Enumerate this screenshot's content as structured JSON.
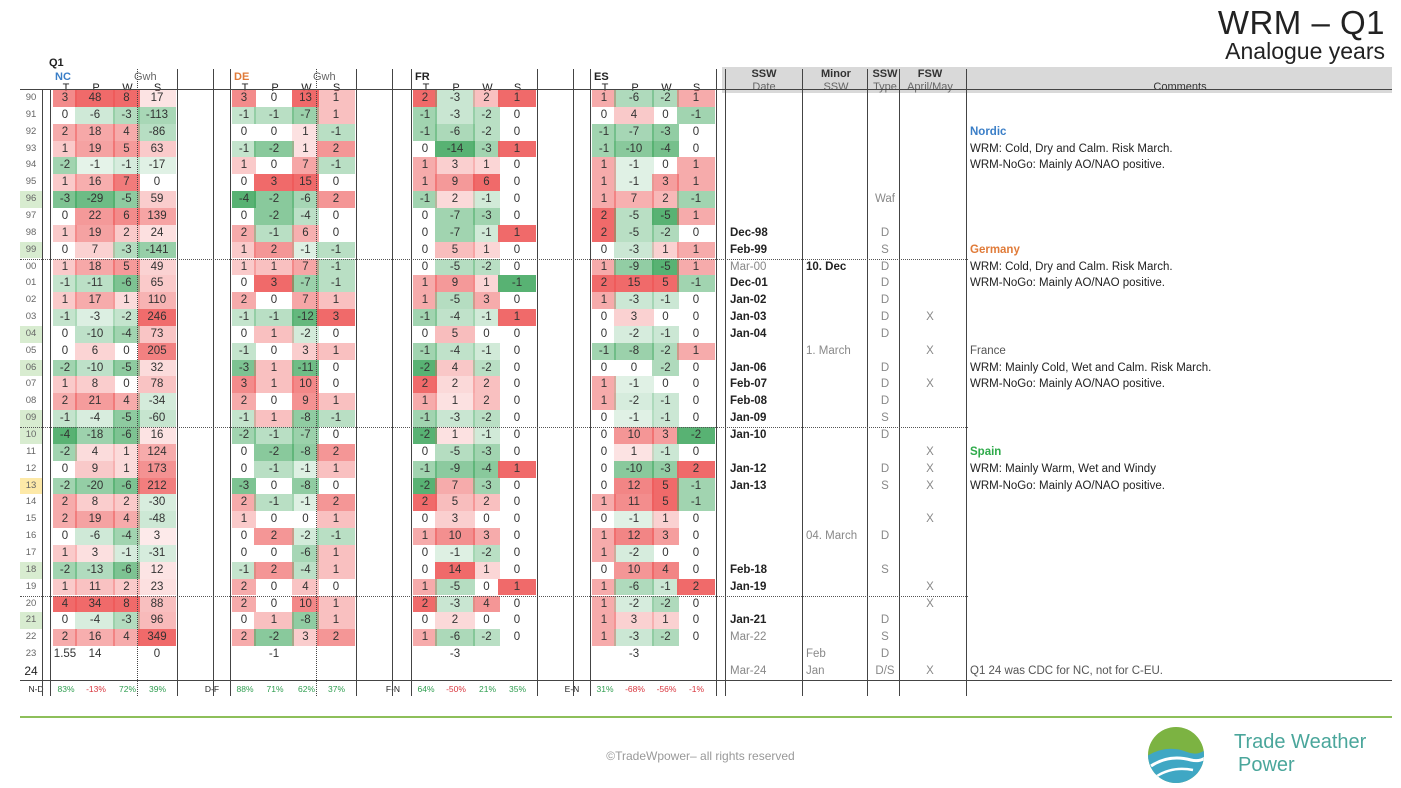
{
  "title": "WRM – Q1",
  "subtitle": "Analogue years",
  "table": {
    "q1_label": "Q1",
    "countries": [
      {
        "name": "NC",
        "color": "#3a7ec7",
        "unit": "Gwh"
      },
      {
        "name": "DE",
        "color": "#e07b39",
        "unit": "Gwh"
      },
      {
        "name": "FR",
        "color": "#222222",
        "unit": ""
      },
      {
        "name": "ES",
        "color": "#222222",
        "unit": ""
      }
    ],
    "sub_headers": [
      "T",
      "P",
      "W",
      "S"
    ],
    "ssw_headers": {
      "h1": [
        "SSW",
        "Minor",
        "SSW",
        "FSW"
      ],
      "h2": [
        "Date",
        "SSW",
        "Type",
        "April/May"
      ],
      "comments": "Comments"
    },
    "years": [
      "90",
      "91",
      "92",
      "93",
      "94",
      "95",
      "96",
      "97",
      "98",
      "99",
      "00",
      "01",
      "02",
      "03",
      "04",
      "05",
      "06",
      "07",
      "08",
      "09",
      "10",
      "11",
      "12",
      "13",
      "14",
      "15",
      "16",
      "17",
      "18",
      "19",
      "20",
      "21",
      "22",
      "23",
      "24"
    ],
    "rows": [
      [
        "3",
        "48",
        "8",
        "17",
        "3",
        "0",
        "13",
        "1",
        "2",
        "-3",
        "2",
        "1",
        "1",
        "-6",
        "-2",
        "1"
      ],
      [
        "0",
        "-6",
        "-3",
        "-113",
        "-1",
        "-1",
        "-7",
        "1",
        "-1",
        "-3",
        "-2",
        "0",
        "0",
        "4",
        "0",
        "-1"
      ],
      [
        "2",
        "18",
        "4",
        "-86",
        "0",
        "0",
        "1",
        "-1",
        "-1",
        "-6",
        "-2",
        "0",
        "-1",
        "-7",
        "-3",
        "0"
      ],
      [
        "1",
        "19",
        "5",
        "63",
        "-1",
        "-2",
        "1",
        "2",
        "0",
        "-14",
        "-3",
        "1",
        "-1",
        "-10",
        "-4",
        "0"
      ],
      [
        "-2",
        "-1",
        "-1",
        "-17",
        "1",
        "0",
        "7",
        "-1",
        "1",
        "3",
        "1",
        "0",
        "1",
        "-1",
        "0",
        "1"
      ],
      [
        "1",
        "16",
        "7",
        "0",
        "0",
        "3",
        "15",
        "0",
        "1",
        "9",
        "6",
        "0",
        "1",
        "-1",
        "3",
        "1"
      ],
      [
        "-3",
        "-29",
        "-5",
        "59",
        "-4",
        "-2",
        "-6",
        "2",
        "-1",
        "2",
        "-1",
        "0",
        "1",
        "7",
        "2",
        "-1"
      ],
      [
        "0",
        "22",
        "6",
        "139",
        "0",
        "-2",
        "-4",
        "0",
        "0",
        "-7",
        "-3",
        "0",
        "2",
        "-5",
        "-5",
        "1"
      ],
      [
        "1",
        "19",
        "2",
        "24",
        "2",
        "-1",
        "6",
        "0",
        "0",
        "-7",
        "-1",
        "1",
        "2",
        "-5",
        "-2",
        "0"
      ],
      [
        "0",
        "7",
        "-3",
        "-141",
        "1",
        "2",
        "-1",
        "-1",
        "0",
        "5",
        "1",
        "0",
        "0",
        "-3",
        "1",
        "1"
      ],
      [
        "1",
        "18",
        "5",
        "49",
        "1",
        "1",
        "7",
        "-1",
        "0",
        "-5",
        "-2",
        "0",
        "1",
        "-9",
        "-5",
        "1"
      ],
      [
        "-1",
        "-11",
        "-6",
        "65",
        "0",
        "3",
        "-7",
        "-1",
        "1",
        "9",
        "1",
        "-1",
        "2",
        "15",
        "5",
        "-1"
      ],
      [
        "1",
        "17",
        "1",
        "110",
        "2",
        "0",
        "7",
        "1",
        "1",
        "-5",
        "3",
        "0",
        "1",
        "-3",
        "-1",
        "0"
      ],
      [
        "-1",
        "-3",
        "-2",
        "246",
        "-1",
        "-1",
        "-12",
        "3",
        "-1",
        "-4",
        "-1",
        "1",
        "0",
        "3",
        "0",
        "0"
      ],
      [
        "0",
        "-10",
        "-4",
        "73",
        "0",
        "1",
        "-2",
        "0",
        "0",
        "5",
        "0",
        "0",
        "0",
        "-2",
        "-1",
        "0"
      ],
      [
        "0",
        "6",
        "0",
        "205",
        "-1",
        "0",
        "3",
        "1",
        "-1",
        "-4",
        "-1",
        "0",
        "-1",
        "-8",
        "-2",
        "1"
      ],
      [
        "-2",
        "-10",
        "-5",
        "32",
        "-3",
        "1",
        "-11",
        "0",
        "-2",
        "4",
        "-2",
        "0",
        "0",
        "0",
        "-2",
        "0"
      ],
      [
        "1",
        "8",
        "0",
        "78",
        "3",
        "1",
        "10",
        "0",
        "2",
        "2",
        "2",
        "0",
        "1",
        "-1",
        "0",
        "0"
      ],
      [
        "2",
        "21",
        "4",
        "-34",
        "2",
        "0",
        "9",
        "1",
        "1",
        "1",
        "2",
        "0",
        "1",
        "-2",
        "-1",
        "0"
      ],
      [
        "-1",
        "-4",
        "-5",
        "-60",
        "-1",
        "1",
        "-8",
        "-1",
        "-1",
        "-3",
        "-2",
        "0",
        "0",
        "-1",
        "-1",
        "0"
      ],
      [
        "-4",
        "-18",
        "-6",
        "16",
        "-2",
        "-1",
        "-7",
        "0",
        "-2",
        "1",
        "-1",
        "0",
        "0",
        "10",
        "3",
        "-2"
      ],
      [
        "-2",
        "4",
        "1",
        "124",
        "0",
        "-2",
        "-8",
        "2",
        "0",
        "-5",
        "-3",
        "0",
        "0",
        "1",
        "-1",
        "0"
      ],
      [
        "0",
        "9",
        "1",
        "173",
        "0",
        "-1",
        "-1",
        "1",
        "-1",
        "-9",
        "-4",
        "1",
        "0",
        "-10",
        "-3",
        "2"
      ],
      [
        "-2",
        "-20",
        "-6",
        "212",
        "-3",
        "0",
        "-8",
        "0",
        "-2",
        "7",
        "-3",
        "0",
        "0",
        "12",
        "5",
        "-1"
      ],
      [
        "2",
        "8",
        "2",
        "-30",
        "2",
        "-1",
        "-1",
        "2",
        "2",
        "5",
        "2",
        "0",
        "1",
        "11",
        "5",
        "-1"
      ],
      [
        "2",
        "19",
        "4",
        "-48",
        "1",
        "0",
        "0",
        "1",
        "0",
        "3",
        "0",
        "0",
        "0",
        "-1",
        "1",
        "0"
      ],
      [
        "0",
        "-6",
        "-4",
        "3",
        "0",
        "2",
        "-2",
        "-1",
        "1",
        "10",
        "3",
        "0",
        "1",
        "12",
        "3",
        "0"
      ],
      [
        "1",
        "3",
        "-1",
        "-31",
        "0",
        "0",
        "-6",
        "1",
        "0",
        "-1",
        "-2",
        "0",
        "1",
        "-2",
        "0",
        "0"
      ],
      [
        "-2",
        "-13",
        "-6",
        "12",
        "-1",
        "2",
        "-4",
        "1",
        "0",
        "14",
        "1",
        "0",
        "0",
        "10",
        "4",
        "0"
      ],
      [
        "1",
        "11",
        "2",
        "23",
        "2",
        "0",
        "4",
        "0",
        "1",
        "-5",
        "0",
        "1",
        "1",
        "-6",
        "-1",
        "2"
      ],
      [
        "4",
        "34",
        "8",
        "88",
        "2",
        "0",
        "10",
        "1",
        "2",
        "-3",
        "4",
        "0",
        "1",
        "-2",
        "-2",
        "0"
      ],
      [
        "0",
        "-4",
        "-3",
        "96",
        "0",
        "1",
        "-8",
        "1",
        "0",
        "2",
        "0",
        "0",
        "1",
        "3",
        "1",
        "0"
      ],
      [
        "2",
        "16",
        "4",
        "349",
        "2",
        "-2",
        "3",
        "2",
        "1",
        "-6",
        "-2",
        "0",
        "1",
        "-3",
        "-2",
        "0"
      ],
      [
        "1.55",
        "14",
        "",
        "0",
        "",
        "-1",
        "",
        "",
        "",
        "-3",
        "",
        "",
        "",
        "-3",
        "",
        ""
      ],
      [
        "",
        "",
        "",
        "",
        "",
        "",
        "",
        "",
        "",
        "",
        "",
        "",
        "",
        "",
        "",
        ""
      ]
    ],
    "ssw": [
      [
        "",
        "",
        "",
        ""
      ],
      [
        "",
        "",
        "",
        ""
      ],
      [
        "",
        "",
        "",
        ""
      ],
      [
        "",
        "",
        "",
        ""
      ],
      [
        "",
        "",
        "",
        ""
      ],
      [
        "",
        "",
        "",
        ""
      ],
      [
        "",
        "",
        "Waf",
        ""
      ],
      [
        "",
        "",
        "",
        ""
      ],
      [
        "Dec-98",
        "",
        "D",
        ""
      ],
      [
        "Feb-99",
        "",
        "S",
        ""
      ],
      [
        "Mar-00",
        "10. Dec",
        "D",
        ""
      ],
      [
        "Dec-01",
        "",
        "D",
        ""
      ],
      [
        "Jan-02",
        "",
        "D",
        ""
      ],
      [
        "Jan-03",
        "",
        "D",
        "X"
      ],
      [
        "Jan-04",
        "",
        "D",
        ""
      ],
      [
        "",
        "1. March",
        "",
        "X"
      ],
      [
        "Jan-06",
        "",
        "D",
        ""
      ],
      [
        "Feb-07",
        "",
        "D",
        "X"
      ],
      [
        "Feb-08",
        "",
        "D",
        ""
      ],
      [
        "Jan-09",
        "",
        "S",
        ""
      ],
      [
        "Jan-10",
        "",
        "D",
        ""
      ],
      [
        "",
        "",
        "",
        "X"
      ],
      [
        "Jan-12",
        "",
        "D",
        "X"
      ],
      [
        "Jan-13",
        "",
        "S",
        "X"
      ],
      [
        "",
        "",
        "",
        ""
      ],
      [
        "",
        "",
        "",
        "X"
      ],
      [
        "",
        "04. March",
        "D",
        ""
      ],
      [
        "",
        "",
        "",
        ""
      ],
      [
        "Feb-18",
        "",
        "S",
        ""
      ],
      [
        "Jan-19",
        "",
        "",
        "X"
      ],
      [
        "",
        "",
        "",
        "X"
      ],
      [
        "Jan-21",
        "",
        "D",
        ""
      ],
      [
        "Mar-22",
        "",
        "S",
        ""
      ],
      [
        "",
        "Feb",
        "D",
        ""
      ],
      [
        "Mar-24",
        "Jan",
        "D/S",
        "X"
      ]
    ],
    "comments": [
      {
        "row": 3,
        "text": "Nordic",
        "color": "#3a7ec7",
        "bold": true
      },
      {
        "row": 4,
        "text": "WRM: Cold, Dry and Calm. Risk March.",
        "color": "#222",
        "bold": false
      },
      {
        "row": 5,
        "text": "WRM-NoGo: Mainly AO/NAO positive.",
        "color": "#222",
        "bold": false
      },
      {
        "row": 10,
        "text": "Germany",
        "color": "#e07b39",
        "bold": true
      },
      {
        "row": 11,
        "text": "WRM: Cold, Dry and Calm. Risk March.",
        "color": "#222",
        "bold": false
      },
      {
        "row": 12,
        "text": "WRM-NoGo: Mainly AO/NAO positive.",
        "color": "#222",
        "bold": false
      },
      {
        "row": 16,
        "text": "France",
        "color": "#555",
        "bold": false
      },
      {
        "row": 17,
        "text": "WRM: Mainly Cold, Wet and Calm. Risk March.",
        "color": "#222",
        "bold": false
      },
      {
        "row": 18,
        "text": "WRM-NoGo: Mainly AO/NAO positive.",
        "color": "#222",
        "bold": false
      },
      {
        "row": 22,
        "text": "Spain",
        "color": "#2eaa4a",
        "bold": true
      },
      {
        "row": 23,
        "text": "WRM: Mainly Warm, Wet and Windy",
        "color": "#222",
        "bold": false
      },
      {
        "row": 24,
        "text": "WRM-NoGo: Mainly AO/NAO positive.",
        "color": "#222",
        "bold": false
      },
      {
        "row": 35,
        "text": "Q1 24 was CDC for NC, not for C-EU.",
        "color": "#555",
        "bold": false
      }
    ],
    "footer_labels": [
      "N-D",
      "D-F",
      "F-N",
      "E-N"
    ],
    "footer": [
      [
        "83%",
        "-13%",
        "72%",
        "39%"
      ],
      [
        "88%",
        "71%",
        "62%",
        "37%"
      ],
      [
        "64%",
        "-50%",
        "21%",
        "35%"
      ],
      [
        "31%",
        "-68%",
        "-56%",
        "-1%"
      ]
    ]
  },
  "copyright": "©TradeWpower– all rights reserved",
  "brand": [
    "Trade Weather",
    "Power"
  ]
}
